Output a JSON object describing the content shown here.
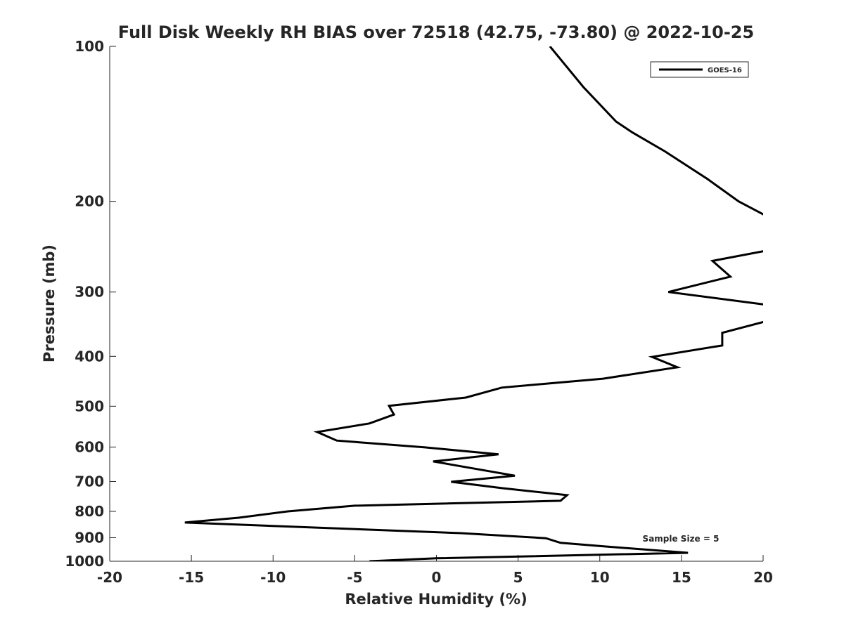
{
  "chart_data": {
    "type": "line",
    "title": "Full Disk Weekly RH BIAS over 72518 (42.75, -73.80) @ 2022-10-25",
    "xlabel": "Relative Humidity (%)",
    "ylabel": "Pressure (mb)",
    "xlim": [
      -20,
      20
    ],
    "ylim": [
      100,
      1000
    ],
    "yscale": "log",
    "y_reversed": true,
    "xticks": [
      -20,
      -15,
      -10,
      -5,
      0,
      5,
      10,
      15,
      20
    ],
    "yticks": [
      100,
      200,
      300,
      400,
      500,
      600,
      700,
      800,
      900,
      1000
    ],
    "grid": false,
    "legend_position": "top-right",
    "annotation": "Sample Size = 5",
    "series": [
      {
        "name": "GOES-16",
        "color": "#000000",
        "points": [
          [
            6.95,
            100
          ],
          [
            9.0,
            120
          ],
          [
            11.0,
            140
          ],
          [
            12.0,
            147
          ],
          [
            14.0,
            160
          ],
          [
            16.6,
            181
          ],
          [
            18.5,
            200
          ],
          [
            20.5,
            216
          ],
          [
            21.5,
            240
          ],
          [
            20.0,
            250
          ],
          [
            16.9,
            261
          ],
          [
            18.0,
            280
          ],
          [
            14.2,
            300
          ],
          [
            20.0,
            317
          ],
          [
            21.0,
            322
          ],
          [
            21.0,
            338
          ],
          [
            20.0,
            343
          ],
          [
            17.5,
            360
          ],
          [
            17.5,
            381
          ],
          [
            13.2,
            401
          ],
          [
            14.75,
            420
          ],
          [
            10.2,
            442
          ],
          [
            4.0,
            460
          ],
          [
            1.8,
            481
          ],
          [
            -2.9,
            499
          ],
          [
            -2.6,
            519
          ],
          [
            -4.1,
            540
          ],
          [
            -7.3,
            561
          ],
          [
            -6.1,
            583
          ],
          [
            -0.7,
            601
          ],
          [
            3.8,
            620
          ],
          [
            -0.2,
            640
          ],
          [
            4.8,
            682
          ],
          [
            0.9,
            701
          ],
          [
            4.0,
            721
          ],
          [
            8.0,
            744
          ],
          [
            7.6,
            763
          ],
          [
            -5.0,
            780
          ],
          [
            -9.1,
            800
          ],
          [
            -12.1,
            823
          ],
          [
            -15.4,
            841
          ],
          [
            1.5,
            882
          ],
          [
            6.7,
            902
          ],
          [
            7.6,
            921
          ],
          [
            10.3,
            936
          ],
          [
            15.4,
            963
          ],
          [
            0.0,
            987
          ],
          [
            -4.1,
            1000
          ]
        ]
      }
    ]
  }
}
